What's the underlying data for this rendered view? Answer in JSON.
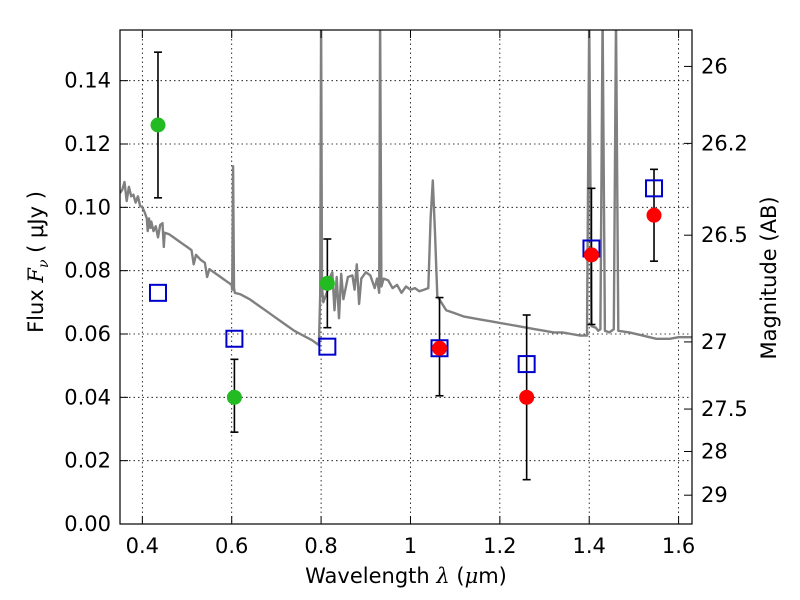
{
  "chart_data": {
    "type": "scatter",
    "title": "",
    "xlabel_prefix": "Wavelength ",
    "xlabel_symbol": "λ",
    "xlabel_unit_open": " (",
    "xlabel_unit_mu": "μ",
    "xlabel_unit_close": "m)",
    "ylabel_prefix": "Flux ",
    "ylabel_symbol": "F",
    "ylabel_subscript": "ν",
    "ylabel_unit": " ( μJy )",
    "y2label": "Magnitude (AB)",
    "xlim": [
      0.35,
      1.63
    ],
    "ylim": [
      0.0,
      0.156
    ],
    "grid": true,
    "x_ticks": [
      0.4,
      0.6,
      0.8,
      1.0,
      1.2,
      1.4,
      1.6
    ],
    "x_tick_labels": [
      "0.4",
      "0.6",
      "0.8",
      "1",
      "1.2",
      "1.4",
      "1.6"
    ],
    "y_ticks": [
      0.0,
      0.02,
      0.04,
      0.06,
      0.08,
      0.1,
      0.12,
      0.14
    ],
    "y_tick_labels": [
      "0.00",
      "0.02",
      "0.04",
      "0.06",
      "0.08",
      "0.10",
      "0.12",
      "0.14"
    ],
    "y2_ticks": [
      {
        "label": "26",
        "flux": 0.1445
      },
      {
        "label": "26.2",
        "flux": 0.1202
      },
      {
        "label": "26.5",
        "flux": 0.0912
      },
      {
        "label": "27",
        "flux": 0.0575
      },
      {
        "label": "27.5",
        "flux": 0.0363
      },
      {
        "label": "28",
        "flux": 0.0229
      },
      {
        "label": "29",
        "flux": 0.0091
      }
    ],
    "series": [
      {
        "marker": "circle",
        "color": "#22bb22",
        "points": [
          {
            "x": 0.435,
            "y": 0.126,
            "ylo": 0.103,
            "yhi": 0.149
          },
          {
            "x": 0.606,
            "y": 0.04,
            "ylo": 0.029,
            "yhi": 0.052
          },
          {
            "x": 0.814,
            "y": 0.076,
            "ylo": 0.062,
            "yhi": 0.09
          }
        ]
      },
      {
        "marker": "circle",
        "color": "#ff0000",
        "points": [
          {
            "x": 1.065,
            "y": 0.0555,
            "ylo": 0.0405,
            "yhi": 0.0715
          },
          {
            "x": 1.26,
            "y": 0.04,
            "ylo": 0.014,
            "yhi": 0.066
          },
          {
            "x": 1.405,
            "y": 0.085,
            "ylo": 0.063,
            "yhi": 0.106
          },
          {
            "x": 1.545,
            "y": 0.0975,
            "ylo": 0.083,
            "yhi": 0.112
          }
        ]
      },
      {
        "marker": "open-square",
        "color": "#0000cc",
        "points": [
          {
            "x": 0.435,
            "y": 0.073
          },
          {
            "x": 0.606,
            "y": 0.0585
          },
          {
            "x": 0.814,
            "y": 0.056
          },
          {
            "x": 1.065,
            "y": 0.0555
          },
          {
            "x": 1.26,
            "y": 0.0505
          },
          {
            "x": 1.405,
            "y": 0.087
          },
          {
            "x": 1.545,
            "y": 0.106
          }
        ]
      },
      {
        "marker": "line",
        "color": "#808080",
        "points": [
          [
            0.35,
            0.1045
          ],
          [
            0.355,
            0.1055
          ],
          [
            0.36,
            0.108
          ],
          [
            0.365,
            0.102
          ],
          [
            0.37,
            0.1065
          ],
          [
            0.375,
            0.1035
          ],
          [
            0.38,
            0.104
          ],
          [
            0.385,
            0.1015
          ],
          [
            0.39,
            0.1035
          ],
          [
            0.395,
            0.1005
          ],
          [
            0.4,
            0.1
          ],
          [
            0.405,
            0.0985
          ],
          [
            0.41,
            0.0965
          ],
          [
            0.412,
            0.0925
          ],
          [
            0.415,
            0.0965
          ],
          [
            0.418,
            0.0935
          ],
          [
            0.42,
            0.0955
          ],
          [
            0.425,
            0.0925
          ],
          [
            0.43,
            0.094
          ],
          [
            0.435,
            0.0905
          ],
          [
            0.44,
            0.0945
          ],
          [
            0.445,
            0.095
          ],
          [
            0.448,
            0.0875
          ],
          [
            0.45,
            0.092
          ],
          [
            0.46,
            0.0915
          ],
          [
            0.47,
            0.0905
          ],
          [
            0.48,
            0.0895
          ],
          [
            0.49,
            0.0885
          ],
          [
            0.5,
            0.0875
          ],
          [
            0.51,
            0.0865
          ],
          [
            0.515,
            0.082
          ],
          [
            0.52,
            0.085
          ],
          [
            0.53,
            0.0835
          ],
          [
            0.54,
            0.0825
          ],
          [
            0.545,
            0.078
          ],
          [
            0.55,
            0.0805
          ],
          [
            0.56,
            0.0795
          ],
          [
            0.57,
            0.0785
          ],
          [
            0.58,
            0.0775
          ],
          [
            0.59,
            0.0765
          ],
          [
            0.6,
            0.0755
          ],
          [
            0.601,
            0.074
          ],
          [
            0.603,
            0.113
          ],
          [
            0.605,
            0.0745
          ],
          [
            0.607,
            0.073
          ],
          [
            0.62,
            0.0725
          ],
          [
            0.64,
            0.071
          ],
          [
            0.66,
            0.069
          ],
          [
            0.68,
            0.067
          ],
          [
            0.7,
            0.065
          ],
          [
            0.72,
            0.063
          ],
          [
            0.74,
            0.061
          ],
          [
            0.76,
            0.0595
          ],
          [
            0.78,
            0.058
          ],
          [
            0.795,
            0.0565
          ],
          [
            0.798,
            0.0725
          ],
          [
            0.8,
            0.16
          ],
          [
            0.802,
            0.075
          ],
          [
            0.805,
            0.07
          ],
          [
            0.81,
            0.072
          ],
          [
            0.815,
            0.074
          ],
          [
            0.82,
            0.078
          ],
          [
            0.825,
            0.0795
          ],
          [
            0.83,
            0.0675
          ],
          [
            0.835,
            0.078
          ],
          [
            0.84,
            0.065
          ],
          [
            0.845,
            0.079
          ],
          [
            0.85,
            0.071
          ],
          [
            0.86,
            0.078
          ],
          [
            0.87,
            0.0785
          ],
          [
            0.875,
            0.074
          ],
          [
            0.88,
            0.082
          ],
          [
            0.885,
            0.0695
          ],
          [
            0.89,
            0.0775
          ],
          [
            0.9,
            0.0795
          ],
          [
            0.91,
            0.0785
          ],
          [
            0.92,
            0.0745
          ],
          [
            0.925,
            0.0775
          ],
          [
            0.93,
            0.073
          ],
          [
            0.932,
            0.16
          ],
          [
            0.935,
            0.075
          ],
          [
            0.94,
            0.0775
          ],
          [
            0.95,
            0.077
          ],
          [
            0.96,
            0.0745
          ],
          [
            0.97,
            0.0755
          ],
          [
            0.98,
            0.073
          ],
          [
            0.99,
            0.075
          ],
          [
            1.0,
            0.074
          ],
          [
            1.01,
            0.0745
          ],
          [
            1.02,
            0.0735
          ],
          [
            1.03,
            0.074
          ],
          [
            1.04,
            0.0745
          ],
          [
            1.045,
            0.0965
          ],
          [
            1.05,
            0.1085
          ],
          [
            1.055,
            0.092
          ],
          [
            1.06,
            0.072
          ],
          [
            1.08,
            0.0675
          ],
          [
            1.1,
            0.0665
          ],
          [
            1.12,
            0.0655
          ],
          [
            1.14,
            0.065
          ],
          [
            1.16,
            0.0645
          ],
          [
            1.18,
            0.064
          ],
          [
            1.2,
            0.0635
          ],
          [
            1.22,
            0.063
          ],
          [
            1.24,
            0.0625
          ],
          [
            1.26,
            0.062
          ],
          [
            1.28,
            0.0615
          ],
          [
            1.3,
            0.061
          ],
          [
            1.32,
            0.0605
          ],
          [
            1.34,
            0.0605
          ],
          [
            1.36,
            0.06
          ],
          [
            1.38,
            0.0595
          ],
          [
            1.395,
            0.0595
          ],
          [
            1.4,
            0.16
          ],
          [
            1.405,
            0.0625
          ],
          [
            1.415,
            0.062
          ],
          [
            1.42,
            0.061
          ],
          [
            1.425,
            0.0615
          ],
          [
            1.43,
            0.16
          ],
          [
            1.435,
            0.061
          ],
          [
            1.445,
            0.0605
          ],
          [
            1.455,
            0.0615
          ],
          [
            1.46,
            0.16
          ],
          [
            1.465,
            0.061
          ],
          [
            1.49,
            0.0605
          ],
          [
            1.52,
            0.0595
          ],
          [
            1.55,
            0.0585
          ],
          [
            1.58,
            0.0585
          ],
          [
            1.6,
            0.059
          ],
          [
            1.63,
            0.059
          ]
        ]
      }
    ]
  }
}
